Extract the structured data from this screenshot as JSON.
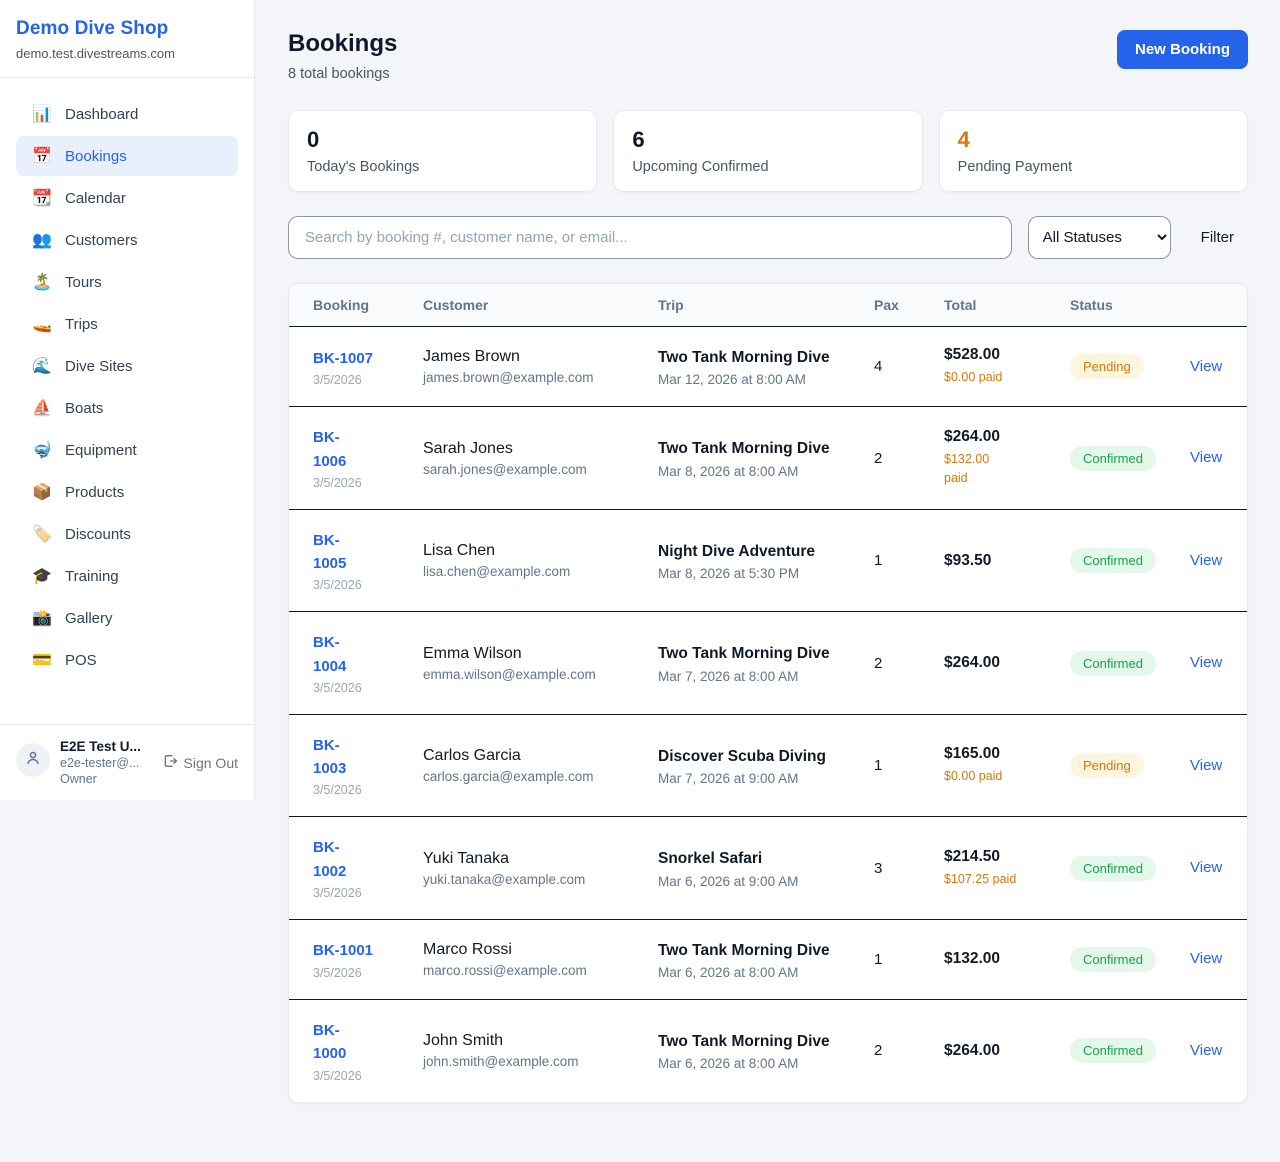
{
  "colors": {
    "accent": "#2563eb",
    "pending": "#d97706",
    "confirmed": "#17a34a"
  },
  "sidebar": {
    "shop_name": "Demo Dive Shop",
    "shop_domain": "demo.test.divestreams.com",
    "items": [
      {
        "key": "dashboard",
        "icon": "📊",
        "label": "Dashboard",
        "active": false
      },
      {
        "key": "bookings",
        "icon": "📅",
        "label": "Bookings",
        "active": true
      },
      {
        "key": "calendar",
        "icon": "📆",
        "label": "Calendar",
        "active": false
      },
      {
        "key": "customers",
        "icon": "👥",
        "label": "Customers",
        "active": false
      },
      {
        "key": "tours",
        "icon": "🏝️",
        "label": "Tours",
        "active": false
      },
      {
        "key": "trips",
        "icon": "🚤",
        "label": "Trips",
        "active": false
      },
      {
        "key": "dive-sites",
        "icon": "🌊",
        "label": "Dive Sites",
        "active": false
      },
      {
        "key": "boats",
        "icon": "⛵",
        "label": "Boats",
        "active": false
      },
      {
        "key": "equipment",
        "icon": "🤿",
        "label": "Equipment",
        "active": false
      },
      {
        "key": "products",
        "icon": "📦",
        "label": "Products",
        "active": false
      },
      {
        "key": "discounts",
        "icon": "🏷️",
        "label": "Discounts",
        "active": false
      },
      {
        "key": "training",
        "icon": "🎓",
        "label": "Training",
        "active": false
      },
      {
        "key": "gallery",
        "icon": "📸",
        "label": "Gallery",
        "active": false
      },
      {
        "key": "pos",
        "icon": "💳",
        "label": "POS",
        "active": false
      }
    ],
    "user": {
      "name": "E2E Test U...",
      "email": "e2e-tester@...",
      "role": "Owner",
      "sign_out_label": "Sign Out"
    }
  },
  "header": {
    "title": "Bookings",
    "subtitle": "8 total bookings",
    "new_booking_label": "New Booking"
  },
  "stats": [
    {
      "value": "0",
      "label": "Today's Bookings",
      "accent": false
    },
    {
      "value": "6",
      "label": "Upcoming Confirmed",
      "accent": false
    },
    {
      "value": "4",
      "label": "Pending Payment",
      "accent": true
    }
  ],
  "filters": {
    "search_placeholder": "Search by booking #, customer name, or email...",
    "status_value": "All Statuses",
    "filter_label": "Filter"
  },
  "table": {
    "columns": [
      "Booking",
      "Customer",
      "Trip",
      "Pax",
      "Total",
      "Status"
    ],
    "view_label": "View",
    "rows": [
      {
        "id": "BK-1007",
        "date": "3/5/2026",
        "customer_name": "James Brown",
        "customer_email": "james.brown@example.com",
        "trip_name": "Two Tank Morning Dive",
        "trip_time": "Mar 12, 2026 at 8:00 AM",
        "pax": "4",
        "total": "$528.00",
        "paid": "$0.00 paid",
        "status": "Pending"
      },
      {
        "id": "BK-\n1006",
        "date": "3/5/2026",
        "customer_name": "Sarah Jones",
        "customer_email": "sarah.jones@example.com",
        "trip_name": "Two Tank Morning Dive",
        "trip_time": "Mar 8, 2026 at 8:00 AM",
        "pax": "2",
        "total": "$264.00",
        "paid": "$132.00\npaid",
        "status": "Confirmed"
      },
      {
        "id": "BK-\n1005",
        "date": "3/5/2026",
        "customer_name": "Lisa Chen",
        "customer_email": "lisa.chen@example.com",
        "trip_name": "Night Dive Adventure",
        "trip_time": "Mar 8, 2026 at 5:30 PM",
        "pax": "1",
        "total": "$93.50",
        "paid": null,
        "status": "Confirmed"
      },
      {
        "id": "BK-\n1004",
        "date": "3/5/2026",
        "customer_name": "Emma Wilson",
        "customer_email": "emma.wilson@example.com",
        "trip_name": "Two Tank Morning Dive",
        "trip_time": "Mar 7, 2026 at 8:00 AM",
        "pax": "2",
        "total": "$264.00",
        "paid": null,
        "status": "Confirmed"
      },
      {
        "id": "BK-\n1003",
        "date": "3/5/2026",
        "customer_name": "Carlos Garcia",
        "customer_email": "carlos.garcia@example.com",
        "trip_name": "Discover Scuba Diving",
        "trip_time": "Mar 7, 2026 at 9:00 AM",
        "pax": "1",
        "total": "$165.00",
        "paid": "$0.00 paid",
        "status": "Pending"
      },
      {
        "id": "BK-\n1002",
        "date": "3/5/2026",
        "customer_name": "Yuki Tanaka",
        "customer_email": "yuki.tanaka@example.com",
        "trip_name": "Snorkel Safari",
        "trip_time": "Mar 6, 2026 at 9:00 AM",
        "pax": "3",
        "total": "$214.50",
        "paid": "$107.25 paid",
        "status": "Confirmed"
      },
      {
        "id": "BK-1001",
        "date": "3/5/2026",
        "customer_name": "Marco Rossi",
        "customer_email": "marco.rossi@example.com",
        "trip_name": "Two Tank Morning Dive",
        "trip_time": "Mar 6, 2026 at 8:00 AM",
        "pax": "1",
        "total": "$132.00",
        "paid": null,
        "status": "Confirmed"
      },
      {
        "id": "BK-\n1000",
        "date": "3/5/2026",
        "customer_name": "John Smith",
        "customer_email": "john.smith@example.com",
        "trip_name": "Two Tank Morning Dive",
        "trip_time": "Mar 6, 2026 at 8:00 AM",
        "pax": "2",
        "total": "$264.00",
        "paid": null,
        "status": "Confirmed"
      }
    ]
  }
}
